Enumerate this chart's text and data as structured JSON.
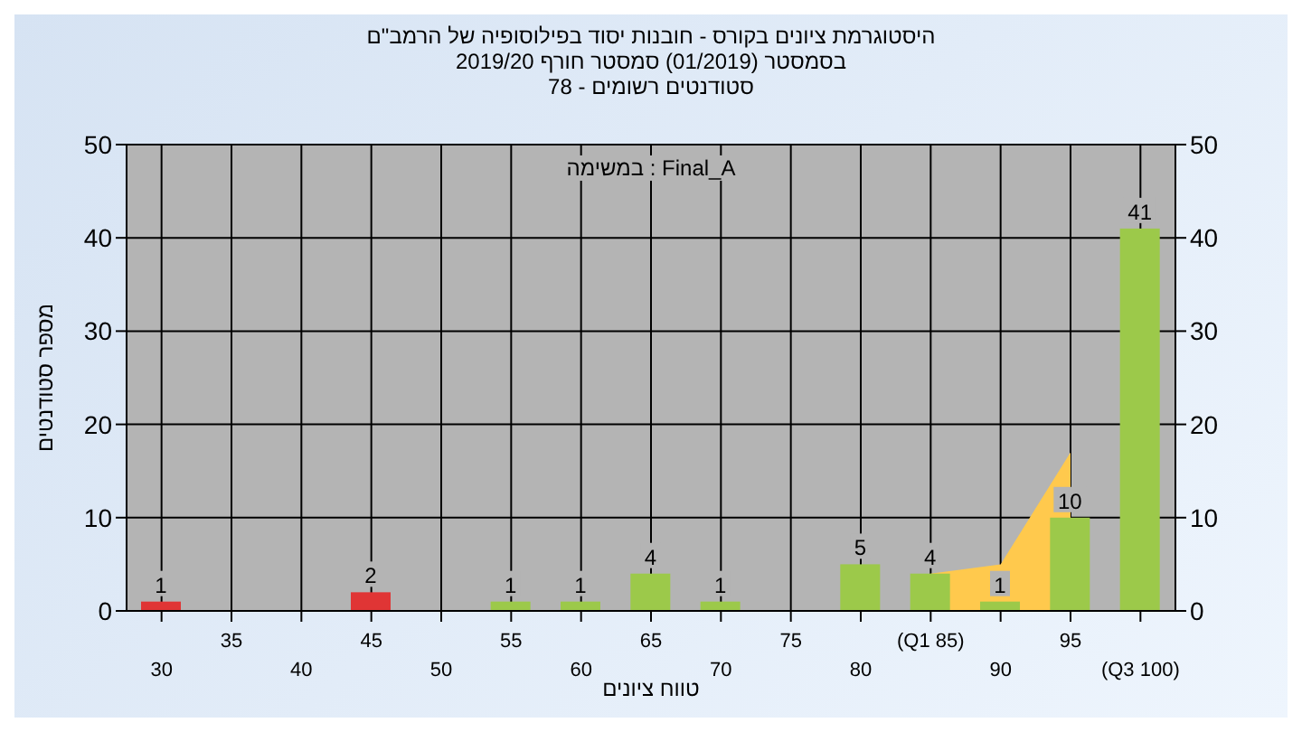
{
  "chart_data": {
    "type": "bar",
    "title": "היסטוגרמת ציונים בקורס - חובנות יסוד בפילוסופיה של הרמב\"ם",
    "subtitle": "בסמסטר  (01/2019)  סמסטר חורף 2019/20\nסטודנטים רשומים - 78",
    "xlabel": "טווח ציונים",
    "ylabel": "מספר סטודנטים",
    "annotations": [
      "במשימה : Final_A"
    ],
    "categories": [
      "30",
      "35",
      "40",
      "45",
      "50",
      "55",
      "60",
      "65",
      "70",
      "75",
      "80",
      "(Q1 85)",
      "90",
      "95",
      "(Q3 100)"
    ],
    "series": [
      {
        "values": [
          1,
          0,
          0,
          2,
          0,
          1,
          1,
          4,
          1,
          0,
          5,
          4,
          1,
          10,
          41
        ],
        "colors": [
          "#e03535",
          "#9cc94a",
          "#9cc94a",
          "#e03535",
          "#9cc94a",
          "#9cc94a",
          "#9cc94a",
          "#9cc94a",
          "#9cc94a",
          "#9cc94a",
          "#9cc94a",
          "#9cc94a",
          "#9cc94a",
          "#9cc94a",
          "#9cc94a"
        ],
        "value_labels": [
          "1",
          null,
          null,
          "2",
          null,
          "1",
          "1",
          "4",
          "1",
          null,
          "5",
          "4",
          "1",
          "10",
          "41"
        ]
      },
      {
        "type": "area",
        "color": "#ffc94d",
        "values": [
          null,
          null,
          null,
          null,
          null,
          null,
          null,
          null,
          null,
          null,
          null,
          4,
          5,
          17,
          null
        ]
      }
    ],
    "ylim": [
      0,
      50
    ],
    "yticks": [
      0,
      10,
      20,
      30,
      40,
      50
    ],
    "y2lim": [
      0,
      50
    ],
    "y2ticks": [
      0,
      10,
      20,
      30,
      40,
      50
    ],
    "grid": true
  }
}
